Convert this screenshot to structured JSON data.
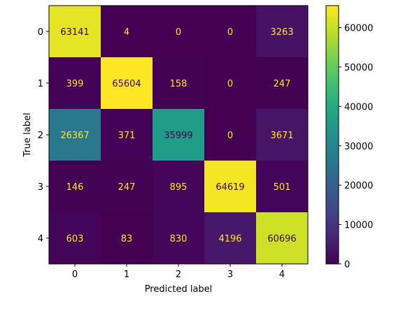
{
  "chart_data": {
    "type": "heatmap",
    "xlabel": "Predicted label",
    "ylabel": "True label",
    "x_categories": [
      "0",
      "1",
      "2",
      "3",
      "4"
    ],
    "y_categories": [
      "0",
      "1",
      "2",
      "3",
      "4"
    ],
    "matrix": [
      [
        63141,
        4,
        0,
        0,
        3263
      ],
      [
        399,
        65604,
        158,
        0,
        247
      ],
      [
        26367,
        371,
        35999,
        0,
        3671
      ],
      [
        146,
        247,
        895,
        64619,
        501
      ],
      [
        603,
        83,
        830,
        4196,
        60696
      ]
    ],
    "colormap": "viridis",
    "colorbar": {
      "min": 0,
      "max": 65604,
      "ticks": [
        "0",
        "10000",
        "20000",
        "30000",
        "40000",
        "50000",
        "60000"
      ]
    },
    "colors": {
      "text_on_dark": "#fde725",
      "text_on_light": "#440154"
    }
  }
}
